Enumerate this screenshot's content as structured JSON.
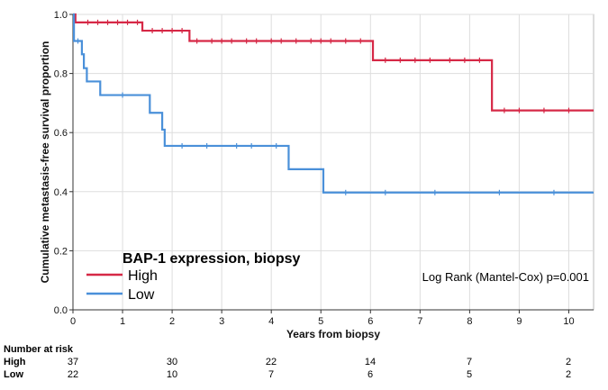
{
  "chart_data": {
    "type": "line",
    "step": true,
    "xlabel": "Years from biopsy",
    "ylabel": "Cumulative metastasis-free survival proportion",
    "xlim": [
      0,
      10.5
    ],
    "ylim": [
      0,
      1.0
    ],
    "x_ticks": [
      "0",
      "1",
      "2",
      "3",
      "4",
      "5",
      "6",
      "7",
      "8",
      "9",
      "10"
    ],
    "y_ticks": [
      "0.0",
      "0.2",
      "0.4",
      "0.6",
      "0.8",
      "1.0"
    ],
    "grid": true,
    "legend": {
      "title": "BAP-1 expression, biopsy",
      "position": "bottom-left"
    },
    "annotation": "Log Rank (Mantel-Cox) p=0.001",
    "series": [
      {
        "name": "High",
        "color": "#d62846",
        "steps": [
          [
            0,
            1.0
          ],
          [
            0.05,
            0.973
          ],
          [
            1.4,
            0.945
          ],
          [
            2.35,
            0.91
          ],
          [
            6.05,
            0.845
          ],
          [
            8.45,
            0.675
          ],
          [
            10.5,
            0.675
          ]
        ],
        "censored_x": [
          0.3,
          0.5,
          0.7,
          0.9,
          1.1,
          1.3,
          1.6,
          1.8,
          2.0,
          2.2,
          2.5,
          2.8,
          3.0,
          3.2,
          3.5,
          3.7,
          4.0,
          4.2,
          4.5,
          4.8,
          5.0,
          5.2,
          5.5,
          5.8,
          6.3,
          6.6,
          6.9,
          7.2,
          7.6,
          7.9,
          8.2,
          8.7,
          9.0,
          9.5,
          10.0
        ]
      },
      {
        "name": "Low",
        "color": "#4a90d9",
        "steps": [
          [
            0,
            1.0
          ],
          [
            0.02,
            0.91
          ],
          [
            0.18,
            0.865
          ],
          [
            0.22,
            0.818
          ],
          [
            0.28,
            0.773
          ],
          [
            0.55,
            0.727
          ],
          [
            1.55,
            0.667
          ],
          [
            1.8,
            0.61
          ],
          [
            1.85,
            0.555
          ],
          [
            4.35,
            0.476
          ],
          [
            5.05,
            0.397
          ],
          [
            10.5,
            0.397
          ]
        ],
        "censored_x": [
          0.1,
          1.0,
          2.2,
          2.7,
          3.3,
          3.6,
          4.1,
          5.5,
          6.3,
          7.3,
          8.6,
          9.7
        ]
      }
    ]
  },
  "risk_table": {
    "title": "Number at risk",
    "rows": [
      {
        "label": "High",
        "values": [
          "37",
          "30",
          "22",
          "14",
          "7",
          "2"
        ]
      },
      {
        "label": "Low",
        "values": [
          "22",
          "10",
          "7",
          "6",
          "5",
          "2"
        ]
      }
    ]
  }
}
